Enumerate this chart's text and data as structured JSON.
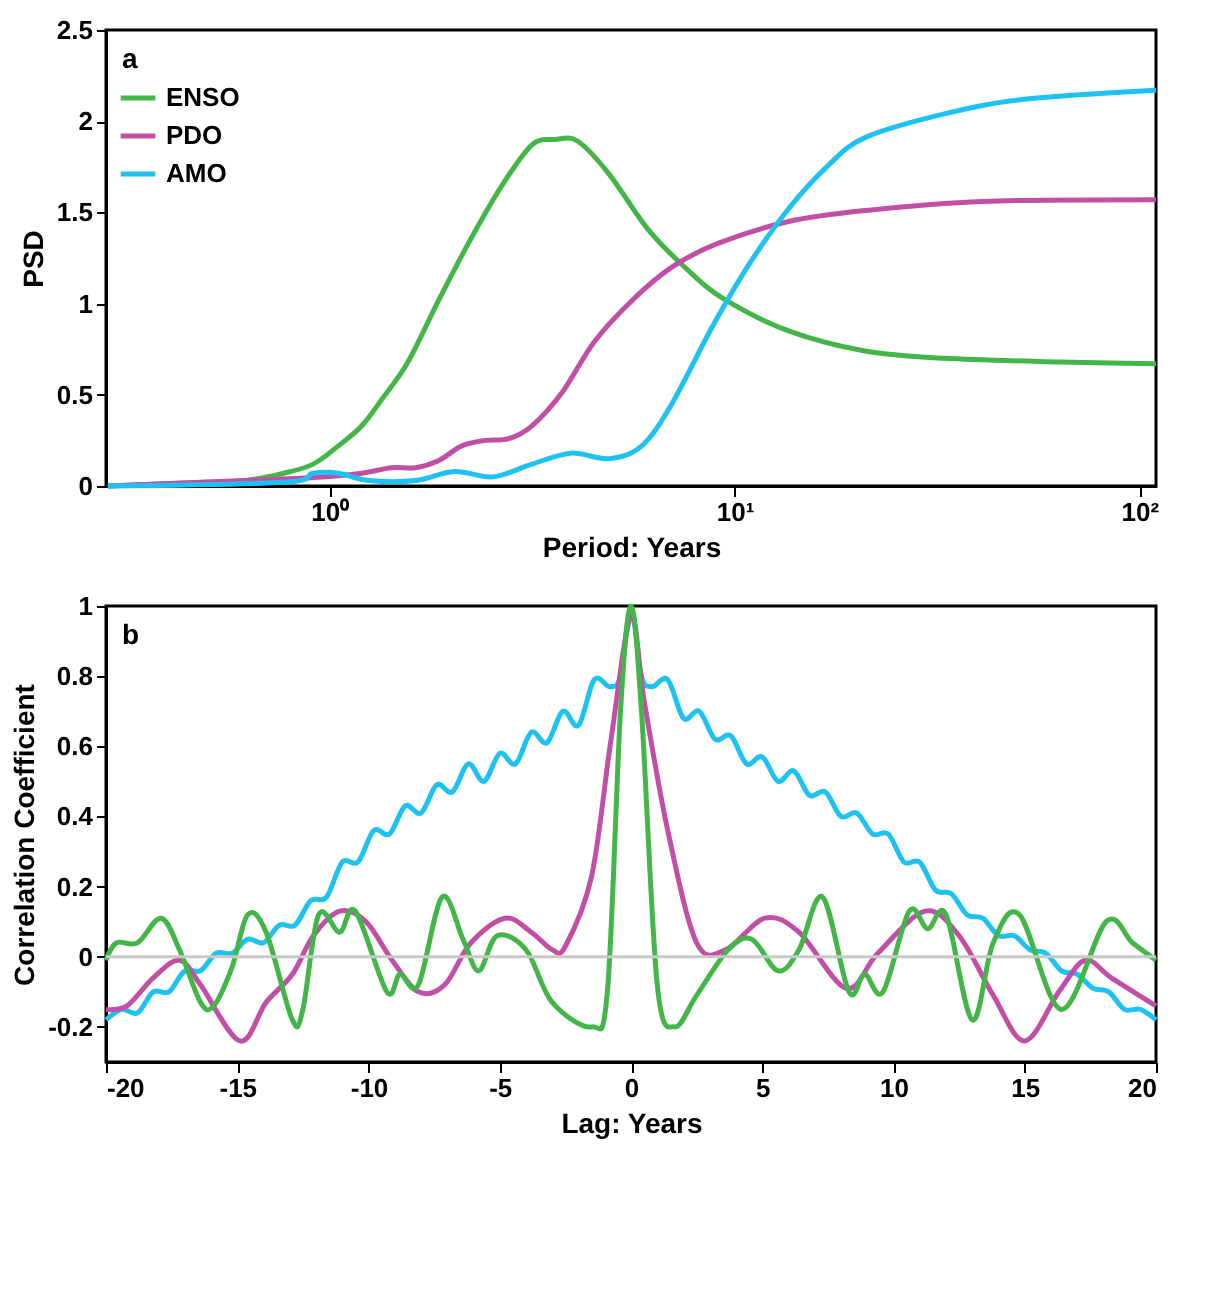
{
  "chart_data": [
    {
      "type": "line",
      "xlabel": "Period: Years",
      "ylabel": "PSD",
      "annotations": [
        "a"
      ],
      "log": "x",
      "xlim": [
        0.28,
        110
      ],
      "xticks": [
        {
          "value": 1,
          "label": "10⁰"
        },
        {
          "value": 10,
          "label": "10¹"
        },
        {
          "value": 100,
          "label": "10²"
        }
      ],
      "ylim": [
        0,
        2.5
      ],
      "yticks": [
        0,
        0.5,
        1,
        1.5,
        2,
        2.5
      ],
      "legend": "top left",
      "grid": false,
      "line_style": "solid",
      "marker": "none",
      "series": [
        {
          "name": "ENSO",
          "color": "#44b649",
          "x": [
            0.283,
            0.49,
            0.62,
            0.77,
            0.91,
            1.05,
            1.2,
            1.36,
            1.56,
            1.86,
            2.2,
            2.65,
            3.16,
            3.6,
            4.1,
            4.9,
            6.1,
            7.7,
            9.5,
            13.6,
            21,
            33,
            64,
            110
          ],
          "values": [
            0,
            0.02,
            0.03,
            0.07,
            0.12,
            0.22,
            0.33,
            0.49,
            0.68,
            1.02,
            1.33,
            1.64,
            1.87,
            1.9,
            1.89,
            1.71,
            1.41,
            1.18,
            1.02,
            0.85,
            0.74,
            0.7,
            0.68,
            0.67
          ]
        },
        {
          "name": "PDO",
          "color": "#c24fa6",
          "x": [
            0.283,
            0.62,
            0.96,
            1.2,
            1.42,
            1.63,
            1.86,
            2.12,
            2.42,
            2.77,
            3.16,
            3.77,
            4.5,
            5.6,
            7.0,
            9.1,
            13.6,
            21,
            41,
            110
          ],
          "values": [
            0,
            0.03,
            0.05,
            0.07,
            0.1,
            0.1,
            0.14,
            0.22,
            0.25,
            0.26,
            0.33,
            0.52,
            0.79,
            1.02,
            1.2,
            1.33,
            1.45,
            1.51,
            1.56,
            1.57
          ]
        },
        {
          "name": "AMO",
          "color": "#1ec2f2",
          "x": [
            0.283,
            0.77,
            0.91,
            1.05,
            1.25,
            1.63,
            2.03,
            2.53,
            3.16,
            3.94,
            4.9,
            5.9,
            7.0,
            8.8,
            10.9,
            13.6,
            16.9,
            21,
            33,
            52,
            110
          ],
          "values": [
            0,
            0.02,
            0.07,
            0.07,
            0.03,
            0.03,
            0.08,
            0.05,
            0.12,
            0.18,
            0.15,
            0.22,
            0.45,
            0.87,
            1.22,
            1.52,
            1.75,
            1.91,
            2.04,
            2.12,
            2.17
          ]
        }
      ]
    },
    {
      "type": "line",
      "xlabel": "Lag: Years",
      "ylabel": "Correlation Coefficient",
      "annotations": [
        "b"
      ],
      "xlim": [
        -20,
        20
      ],
      "xticks": [
        -20,
        -15,
        -10,
        -5,
        0,
        5,
        10,
        15,
        20
      ],
      "ylim": [
        -0.3,
        1
      ],
      "yticks": [
        -0.2,
        0,
        0.2,
        0.4,
        0.6,
        0.8,
        1
      ],
      "legend": false,
      "grid": false,
      "line_style": "solid",
      "marker": "none",
      "ref_lines": [
        {
          "axis": "y",
          "value": 0,
          "color": "#c8c8c8"
        }
      ],
      "series": [
        {
          "color": "#1ec2f2",
          "x": [
            -20,
            -19.4,
            -18.8,
            -18.2,
            -17.6,
            -17.0,
            -16.4,
            -15.8,
            -15.2,
            -14.6,
            -14.0,
            -13.4,
            -12.8,
            -12.2,
            -11.6,
            -11.0,
            -10.4,
            -9.8,
            -9.2,
            -8.6,
            -8.0,
            -7.4,
            -6.8,
            -6.2,
            -5.6,
            -5.0,
            -4.4,
            -3.8,
            -3.2,
            -2.6,
            -2.0,
            -1.4,
            -0.8,
            -0.4,
            0,
            0.4,
            0.8,
            1.4,
            2.0,
            2.6,
            3.2,
            3.8,
            4.4,
            5.0,
            5.6,
            6.2,
            6.8,
            7.4,
            8.0,
            8.6,
            9.2,
            9.8,
            10.4,
            11.0,
            11.6,
            12.2,
            12.8,
            13.4,
            14.0,
            14.6,
            15.2,
            15.8,
            16.4,
            17.0,
            17.6,
            18.2,
            18.8,
            19.4,
            20
          ],
          "values": [
            -0.18,
            -0.15,
            -0.16,
            -0.1,
            -0.1,
            -0.04,
            -0.04,
            0.01,
            0.01,
            0.05,
            0.04,
            0.09,
            0.09,
            0.16,
            0.17,
            0.27,
            0.27,
            0.36,
            0.35,
            0.43,
            0.41,
            0.49,
            0.47,
            0.55,
            0.5,
            0.58,
            0.55,
            0.64,
            0.61,
            0.7,
            0.66,
            0.79,
            0.77,
            0.8,
            0.99,
            0.8,
            0.77,
            0.79,
            0.68,
            0.7,
            0.62,
            0.63,
            0.55,
            0.57,
            0.5,
            0.53,
            0.46,
            0.47,
            0.4,
            0.41,
            0.35,
            0.35,
            0.27,
            0.27,
            0.19,
            0.18,
            0.12,
            0.11,
            0.06,
            0.06,
            0.02,
            0.01,
            -0.04,
            -0.05,
            -0.09,
            -0.1,
            -0.15,
            -0.15,
            -0.18
          ]
        },
        {
          "color": "#c24fa6",
          "x": [
            -20,
            -19.2,
            -18.2,
            -17.2,
            -16.4,
            -14.9,
            -13.9,
            -12.9,
            -12.1,
            -11.1,
            -10.1,
            -9.1,
            -8.1,
            -7.1,
            -6.1,
            -4.8,
            -3.8,
            -3.0,
            -2.5,
            -1.5,
            -0.76,
            0,
            0.5,
            1.4,
            2.5,
            3.6,
            5.1,
            6.4,
            8.2,
            9.4,
            11.2,
            12.5,
            13.8,
            15.0,
            16.3,
            17.3,
            18.3,
            20
          ],
          "values": [
            -0.15,
            -0.14,
            -0.06,
            -0.01,
            -0.08,
            -0.24,
            -0.13,
            -0.05,
            0.06,
            0.13,
            0.1,
            -0.01,
            -0.1,
            -0.08,
            0.04,
            0.11,
            0.07,
            0.02,
            0.03,
            0.23,
            0.62,
            0.97,
            0.73,
            0.36,
            0.04,
            0.02,
            0.11,
            0.07,
            -0.09,
            0.01,
            0.13,
            0.06,
            -0.11,
            -0.24,
            -0.1,
            -0.01,
            -0.06,
            -0.14
          ]
        },
        {
          "color": "#44b649",
          "x": [
            -20,
            -19.6,
            -18.8,
            -17.9,
            -17.2,
            -16.4,
            -15.9,
            -15.2,
            -14.6,
            -13.9,
            -12.9,
            -12.5,
            -11.9,
            -11.1,
            -10.5,
            -9.3,
            -8.8,
            -8.1,
            -7.2,
            -6.4,
            -5.8,
            -5.1,
            -4.0,
            -3.0,
            -1.5,
            -0.9,
            -0.4,
            0,
            0.4,
            1.0,
            1.66,
            2.5,
            3.7,
            4.6,
            5.6,
            6.4,
            7.3,
            8.3,
            8.9,
            9.6,
            10.6,
            11.3,
            12.0,
            13.0,
            13.8,
            14.8,
            16.4,
            18.1,
            19.1,
            20
          ],
          "values": [
            -0.01,
            0.04,
            0.04,
            0.11,
            0.02,
            -0.13,
            -0.14,
            -0.03,
            0.12,
            0.07,
            -0.18,
            -0.15,
            0.12,
            0.07,
            0.13,
            -0.1,
            -0.05,
            -0.08,
            0.17,
            0.05,
            -0.04,
            0.06,
            0.02,
            -0.13,
            -0.2,
            -0.1,
            0.7,
            1.0,
            0.7,
            -0.08,
            -0.2,
            -0.11,
            0.02,
            0.05,
            -0.04,
            0.02,
            0.17,
            -0.1,
            -0.05,
            -0.1,
            0.13,
            0.08,
            0.12,
            -0.18,
            0.04,
            0.12,
            -0.15,
            0.1,
            0.04,
            -0.01
          ]
        }
      ]
    }
  ]
}
